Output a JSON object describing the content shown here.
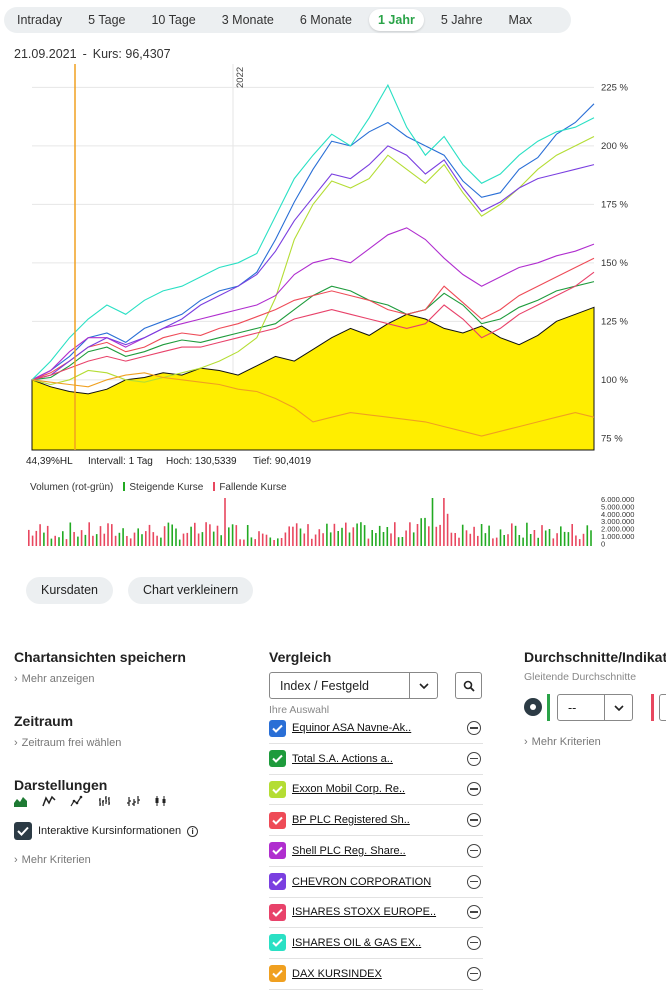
{
  "tabs": [
    {
      "label": "Intraday",
      "active": false
    },
    {
      "label": "5 Tage",
      "active": false
    },
    {
      "label": "10 Tage",
      "active": false
    },
    {
      "label": "3 Monate",
      "active": false
    },
    {
      "label": "6 Monate",
      "active": false
    },
    {
      "label": "1 Jahr",
      "active": true
    },
    {
      "label": "5 Jahre",
      "active": false
    },
    {
      "label": "Max",
      "active": false
    }
  ],
  "cursor": {
    "date": "21.09.2021",
    "kurs_label": "Kurs: 96,4307"
  },
  "stats": {
    "hl": "44,39%HL",
    "intervall": "Intervall: 1 Tag",
    "hoch": "Hoch: 130,5339",
    "tief": "Tief: 90,4019"
  },
  "volume_legend": {
    "title": "Volumen (rot-grün)",
    "up": "Steigende Kurse",
    "down": "Fallende Kurse",
    "up_color": "#22aa22",
    "down_color": "#e8475f"
  },
  "buttons": {
    "kursdaten": "Kursdaten",
    "verkleinern": "Chart verkleinern"
  },
  "sections": {
    "chartansichten": {
      "title": "Chartansichten speichern",
      "link": "Mehr anzeigen"
    },
    "zeitraum": {
      "title": "Zeitraum",
      "link": "Zeitraum frei wählen"
    },
    "darstellungen": {
      "title": "Darstellungen",
      "checkbox_label": "Interaktive Kursinformationen",
      "link": "Mehr Kriterien",
      "types": [
        "mountain-chart-icon",
        "line-chart-icon",
        "point-line-chart-icon",
        "ohlc-chart-icon",
        "hlc-chart-icon",
        "candlestick-chart-icon"
      ]
    },
    "vergleich": {
      "title": "Vergleich",
      "select_value": "Index / Festgeld",
      "sub": "Ihre Auswahl"
    },
    "durchschnitte": {
      "title": "Durchschnitte/Indikat",
      "sub": "Gleitende Durchschnitte",
      "select_value": "--",
      "link": "Mehr Kriterien"
    }
  },
  "comparisons": [
    {
      "name": "Equinor ASA Navne-Ak..",
      "color": "#2a6fd6"
    },
    {
      "name": "Total S.A. Actions a..",
      "color": "#1e9b3c"
    },
    {
      "name": "Exxon Mobil Corp. Re..",
      "color": "#b4dd34"
    },
    {
      "name": "BP PLC Registered Sh..",
      "color": "#ee4b57"
    },
    {
      "name": "Shell PLC Reg. Share..",
      "color": "#b02ecf"
    },
    {
      "name": "CHEVRON CORPORATION",
      "color": "#7a3fe0"
    },
    {
      "name": "ISHARES STOXX EUROPE..",
      "color": "#e8426a"
    },
    {
      "name": "ISHARES OIL & GAS EX..",
      "color": "#2ae0c4"
    },
    {
      "name": "DAX KURSINDEX",
      "color": "#f0a020"
    }
  ],
  "chart_data": {
    "type": "line",
    "ylim": [
      70,
      235
    ],
    "y_ticks": [
      "225 %",
      "200 %",
      "175 %",
      "150 %",
      "125 %",
      "100 %",
      "75 %"
    ],
    "y_tick_values": [
      225,
      200,
      175,
      150,
      125,
      100,
      75
    ],
    "year_marker": "2022",
    "main_series": {
      "name": "Kurs",
      "fill": "#ffee00",
      "values": [
        100,
        97,
        95,
        94,
        96,
        100,
        101,
        103,
        102,
        105,
        104,
        102,
        106,
        110,
        108,
        113,
        118,
        122,
        119,
        124,
        128,
        126,
        122,
        120,
        123,
        118,
        115,
        119,
        125,
        128,
        131
      ]
    },
    "series": [
      {
        "name": "Equinor ASA Navne-Ak..",
        "color": "#2a6fd6",
        "values": [
          100,
          104,
          110,
          118,
          120,
          116,
          122,
          125,
          128,
          134,
          138,
          140,
          146,
          160,
          176,
          190,
          202,
          200,
          206,
          210,
          204,
          200,
          196,
          185,
          178,
          180,
          190,
          195,
          205,
          210,
          218
        ]
      },
      {
        "name": "Total S.A. Actions a..",
        "color": "#1e9b3c",
        "values": [
          100,
          101,
          106,
          112,
          114,
          110,
          112,
          115,
          117,
          116,
          118,
          120,
          122,
          124,
          130,
          136,
          140,
          138,
          134,
          132,
          128,
          130,
          137,
          132,
          124,
          126,
          131,
          134,
          138,
          140,
          142
        ]
      },
      {
        "name": "Exxon Mobil Corp. Re..",
        "color": "#b4dd34",
        "values": [
          100,
          98,
          100,
          104,
          103,
          100,
          99,
          101,
          103,
          105,
          108,
          112,
          118,
          135,
          160,
          175,
          185,
          182,
          186,
          196,
          190,
          184,
          192,
          180,
          170,
          175,
          182,
          190,
          196,
          200,
          204
        ]
      },
      {
        "name": "BP PLC Registered Sh..",
        "color": "#ee4b57",
        "values": [
          100,
          103,
          108,
          114,
          116,
          112,
          114,
          118,
          120,
          119,
          122,
          124,
          127,
          130,
          134,
          136,
          138,
          136,
          134,
          130,
          128,
          130,
          140,
          133,
          126,
          130,
          136,
          140,
          144,
          148,
          152
        ]
      },
      {
        "name": "Shell PLC Reg. Share..",
        "color": "#b02ecf",
        "values": [
          100,
          104,
          112,
          118,
          118,
          114,
          118,
          122,
          124,
          126,
          128,
          130,
          132,
          136,
          145,
          150,
          152,
          150,
          156,
          162,
          165,
          160,
          152,
          145,
          140,
          144,
          148,
          150,
          153,
          155,
          158
        ]
      },
      {
        "name": "CHEVRON CORPORATION",
        "color": "#7a3fe0",
        "values": [
          100,
          102,
          108,
          114,
          118,
          115,
          118,
          122,
          126,
          132,
          136,
          140,
          145,
          155,
          168,
          178,
          188,
          186,
          192,
          200,
          196,
          188,
          194,
          182,
          172,
          176,
          182,
          186,
          188,
          190,
          192
        ]
      },
      {
        "name": "ISHARES STOXX EUROPE..",
        "color": "#e8426a",
        "values": [
          100,
          102,
          105,
          108,
          110,
          108,
          110,
          112,
          114,
          114,
          116,
          118,
          120,
          122,
          126,
          128,
          130,
          128,
          126,
          124,
          122,
          124,
          132,
          126,
          118,
          122,
          128,
          132,
          136,
          140,
          146
        ]
      },
      {
        "name": "ISHARES OIL & GAS EX..",
        "color": "#2ae0c4",
        "values": [
          100,
          108,
          118,
          126,
          132,
          128,
          134,
          138,
          140,
          144,
          148,
          150,
          154,
          170,
          186,
          196,
          205,
          200,
          212,
          226,
          208,
          196,
          204,
          192,
          184,
          188,
          196,
          202,
          206,
          208,
          212
        ]
      },
      {
        "name": "DAX KURSINDEX",
        "color": "#f0a020",
        "values": [
          100,
          99,
          98,
          97,
          100,
          102,
          103,
          101,
          100,
          99,
          98,
          96,
          95,
          92,
          88,
          82,
          84,
          86,
          85,
          84,
          83,
          82,
          80,
          78,
          76,
          78,
          80,
          82,
          84,
          86,
          84
        ]
      }
    ]
  }
}
